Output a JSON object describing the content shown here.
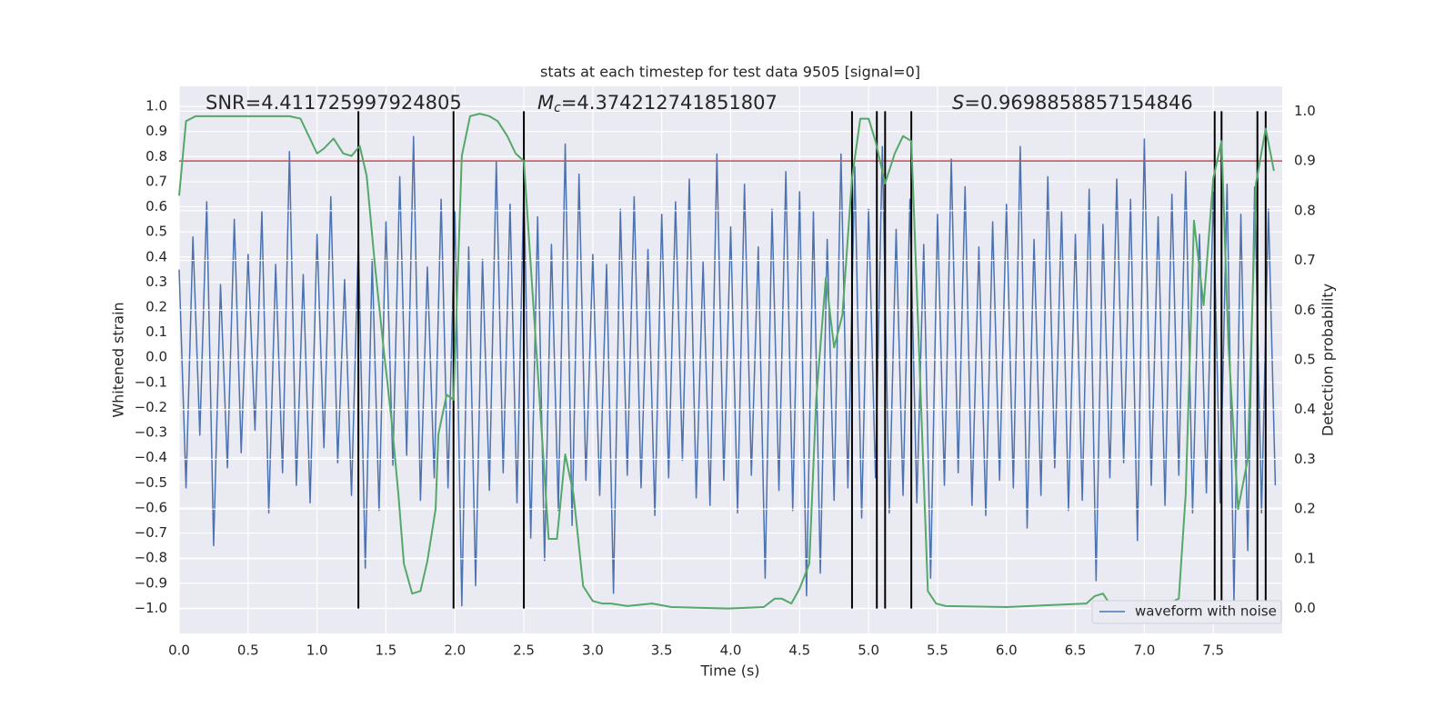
{
  "chart_data": {
    "type": "line",
    "title": "stats at each timestep for test data 9505 [signal=0]",
    "xlabel": "Time (s)",
    "ylabel": "Whitened strain",
    "y2label": "Detection probability",
    "annotations": [
      {
        "text": "SNR=4.411725997924805"
      },
      {
        "symbol": "M",
        "subscript": "c",
        "text": "=4.374212741851807"
      },
      {
        "symbol": "S",
        "text": "=0.9698858857154846"
      }
    ],
    "xlim": [
      0,
      8
    ],
    "xticks": [
      {
        "value": 0,
        "label": "0.0"
      },
      0.5,
      {
        "value": 1,
        "label": "1.0"
      },
      1.5,
      {
        "value": 2,
        "label": "2.0"
      },
      2.5,
      {
        "value": 3,
        "label": "3.0"
      },
      3.5,
      {
        "value": 4,
        "label": "4.0"
      },
      4.5,
      {
        "value": 5,
        "label": "5.0"
      },
      5.5,
      {
        "value": 6,
        "label": "6.0"
      },
      6.5,
      {
        "value": 7,
        "label": "7.0"
      },
      7.5
    ],
    "ylim": [
      -1.1,
      1.08
    ],
    "yticks": [
      {
        "value": -1,
        "label": "−1.0"
      },
      {
        "value": -0.9,
        "label": "−0.9"
      },
      {
        "value": -0.8,
        "label": "−0.8"
      },
      {
        "value": -0.7,
        "label": "−0.7"
      },
      {
        "value": -0.6,
        "label": "−0.6"
      },
      {
        "value": -0.5,
        "label": "−0.5"
      },
      {
        "value": -0.4,
        "label": "−0.4"
      },
      {
        "value": -0.3,
        "label": "−0.3"
      },
      {
        "value": -0.2,
        "label": "−0.2"
      },
      {
        "value": -0.1,
        "label": "−0.1"
      },
      {
        "value": 0,
        "label": "0.0"
      },
      0.1,
      0.2,
      0.3,
      0.4,
      0.5,
      0.6,
      0.7,
      0.8,
      0.9,
      {
        "value": 1,
        "label": "1.0"
      }
    ],
    "y2lim": [
      -0.05,
      1.05
    ],
    "y2ticks": [
      {
        "value": 0,
        "label": "0.0"
      },
      0.1,
      0.2,
      0.3,
      0.4,
      0.5,
      0.6,
      0.7,
      0.8,
      0.9,
      {
        "value": 1,
        "label": "1.0"
      }
    ],
    "grid": true,
    "legend": "lower right",
    "series": [
      {
        "name": "waveform with noise",
        "color": "#4c72b0",
        "x": [
          0,
          0.05,
          0.1,
          0.15,
          0.2,
          0.25,
          0.3,
          0.35,
          0.4,
          0.45,
          0.5,
          0.55,
          0.6,
          0.65,
          0.7,
          0.75,
          0.8,
          0.85,
          0.9,
          0.95,
          1,
          1.05,
          1.1,
          1.15,
          1.2,
          1.25,
          1.3,
          1.35,
          1.4,
          1.45,
          1.5,
          1.55,
          1.6,
          1.65,
          1.7,
          1.75,
          1.8,
          1.85,
          1.9,
          1.95,
          2,
          2.05,
          2.1,
          2.15,
          2.2,
          2.25,
          2.3,
          2.35,
          2.4,
          2.45,
          2.5,
          2.55,
          2.6,
          2.65,
          2.7,
          2.75,
          2.8,
          2.85,
          2.9,
          2.95,
          3,
          3.05,
          3.1,
          3.15,
          3.2,
          3.25,
          3.3,
          3.35,
          3.4,
          3.45,
          3.5,
          3.55,
          3.6,
          3.65,
          3.7,
          3.75,
          3.8,
          3.85,
          3.9,
          3.95,
          4,
          4.05,
          4.1,
          4.15,
          4.2,
          4.25,
          4.3,
          4.35,
          4.4,
          4.45,
          4.5,
          4.55,
          4.6,
          4.65,
          4.7,
          4.75,
          4.8,
          4.85,
          4.9,
          4.95,
          5,
          5.05,
          5.1,
          5.15,
          5.2,
          5.25,
          5.3,
          5.35,
          5.4,
          5.45,
          5.5,
          5.55,
          5.6,
          5.65,
          5.7,
          5.75,
          5.8,
          5.85,
          5.9,
          5.95,
          6,
          6.05,
          6.1,
          6.15,
          6.2,
          6.25,
          6.3,
          6.35,
          6.4,
          6.45,
          6.5,
          6.55,
          6.6,
          6.65,
          6.7,
          6.75,
          6.8,
          6.85,
          6.9,
          6.95,
          7,
          7.05,
          7.1,
          7.15,
          7.2,
          7.25,
          7.3,
          7.35,
          7.4,
          7.45,
          7.5,
          7.55,
          7.6,
          7.65,
          7.7,
          7.75,
          7.8,
          7.85,
          7.9,
          7.95
        ],
        "values": [
          0.35,
          -0.52,
          0.48,
          -0.31,
          0.62,
          -0.75,
          0.29,
          -0.44,
          0.55,
          -0.38,
          0.41,
          -0.29,
          0.58,
          -0.62,
          0.37,
          -0.46,
          0.82,
          -0.51,
          0.33,
          -0.58,
          0.49,
          -0.36,
          0.64,
          -0.42,
          0.31,
          -0.55,
          0.47,
          -0.84,
          0.39,
          -0.61,
          0.54,
          -0.43,
          0.72,
          -0.39,
          0.88,
          -0.57,
          0.36,
          -0.48,
          0.63,
          -0.52,
          0.58,
          -0.99,
          0.44,
          -0.91,
          0.39,
          -0.53,
          0.78,
          -0.46,
          0.61,
          -0.58,
          0.69,
          -0.72,
          0.56,
          -0.81,
          0.45,
          -0.61,
          0.85,
          -0.67,
          0.73,
          -0.49,
          0.41,
          -0.55,
          0.37,
          -0.94,
          0.59,
          -0.47,
          0.64,
          -0.52,
          0.43,
          -0.63,
          0.57,
          -0.48,
          0.62,
          -0.41,
          0.71,
          -0.56,
          0.38,
          -0.59,
          0.81,
          -0.49,
          0.52,
          -0.62,
          0.69,
          -0.47,
          0.44,
          -0.88,
          0.59,
          -0.53,
          0.74,
          -0.61,
          0.66,
          -0.95,
          0.58,
          -0.86,
          0.47,
          -0.57,
          0.81,
          -0.52,
          0.76,
          -0.64,
          0.59,
          -0.48,
          0.84,
          -0.62,
          0.51,
          -0.55,
          0.63,
          -0.58,
          0.45,
          -0.88,
          0.57,
          -0.51,
          0.79,
          -0.46,
          0.68,
          -0.59,
          0.44,
          -0.63,
          0.54,
          -0.49,
          0.61,
          -0.52,
          0.84,
          -0.68,
          0.47,
          -0.55,
          0.72,
          -0.44,
          0.58,
          -0.61,
          0.49,
          -0.57,
          0.67,
          -0.89,
          0.53,
          -0.48,
          0.71,
          -0.42,
          0.63,
          -0.73,
          0.87,
          -0.51,
          0.56,
          -0.59,
          0.65,
          -0.47,
          0.74,
          -0.62,
          0.49,
          -0.54,
          0.66,
          -0.58,
          0.69,
          -0.97,
          0.57,
          -0.77,
          0.68,
          -0.62,
          0.59,
          -0.51
        ]
      },
      {
        "color": "#55a868",
        "axis": "y2",
        "x": [
          0,
          0.05,
          0.12,
          0.2,
          0.4,
          0.6,
          0.8,
          0.88,
          0.94,
          1.0,
          1.05,
          1.12,
          1.19,
          1.25,
          1.31,
          1.36,
          1.42,
          1.48,
          1.54,
          1.59,
          1.63,
          1.69,
          1.75,
          1.8,
          1.86,
          1.88,
          1.94,
          1.99,
          2.05,
          2.11,
          2.18,
          2.25,
          2.31,
          2.38,
          2.44,
          2.5,
          2.55,
          2.6,
          2.64,
          2.68,
          2.74,
          2.8,
          2.86,
          2.93,
          3.0,
          3.07,
          3.13,
          3.25,
          3.43,
          3.57,
          3.98,
          4.24,
          4.32,
          4.37,
          4.44,
          4.5,
          4.57,
          4.62,
          4.69,
          4.75,
          4.81,
          4.88,
          4.94,
          5.0,
          5.05,
          5.12,
          5.19,
          5.25,
          5.31,
          5.37,
          5.43,
          5.49,
          5.56,
          6.0,
          6.58,
          6.64,
          6.7,
          6.76,
          6.94,
          7.14,
          7.25,
          7.3,
          7.36,
          7.43,
          7.5,
          7.56,
          7.61,
          7.68,
          7.75,
          7.81,
          7.88,
          7.94
        ],
        "values": [
          0.83,
          0.98,
          0.99,
          0.99,
          0.99,
          0.99,
          0.99,
          0.985,
          0.95,
          0.915,
          0.925,
          0.945,
          0.915,
          0.91,
          0.93,
          0.87,
          0.69,
          0.53,
          0.38,
          0.23,
          0.09,
          0.03,
          0.035,
          0.095,
          0.2,
          0.35,
          0.43,
          0.42,
          0.91,
          0.99,
          0.995,
          0.99,
          0.98,
          0.95,
          0.915,
          0.9,
          0.69,
          0.48,
          0.31,
          0.14,
          0.14,
          0.31,
          0.23,
          0.045,
          0.015,
          0.01,
          0.01,
          0.005,
          0.01,
          0.003,
          0.0,
          0.003,
          0.02,
          0.02,
          0.01,
          0.04,
          0.09,
          0.42,
          0.665,
          0.525,
          0.59,
          0.865,
          0.985,
          0.985,
          0.94,
          0.855,
          0.915,
          0.95,
          0.94,
          0.49,
          0.035,
          0.01,
          0.005,
          0.003,
          0.01,
          0.025,
          0.03,
          0.005,
          0.01,
          0.005,
          0.02,
          0.23,
          0.78,
          0.61,
          0.865,
          0.94,
          0.53,
          0.2,
          0.3,
          0.855,
          0.965,
          0.88
        ]
      }
    ],
    "hline": {
      "value": 0.9,
      "axis": "y2",
      "color": "#c44e52"
    },
    "vlines": {
      "color": "#000000",
      "x": [
        1.3,
        1.99,
        2.5,
        4.88,
        5.06,
        5.12,
        5.31,
        7.51,
        7.56,
        7.82,
        7.88
      ]
    }
  }
}
